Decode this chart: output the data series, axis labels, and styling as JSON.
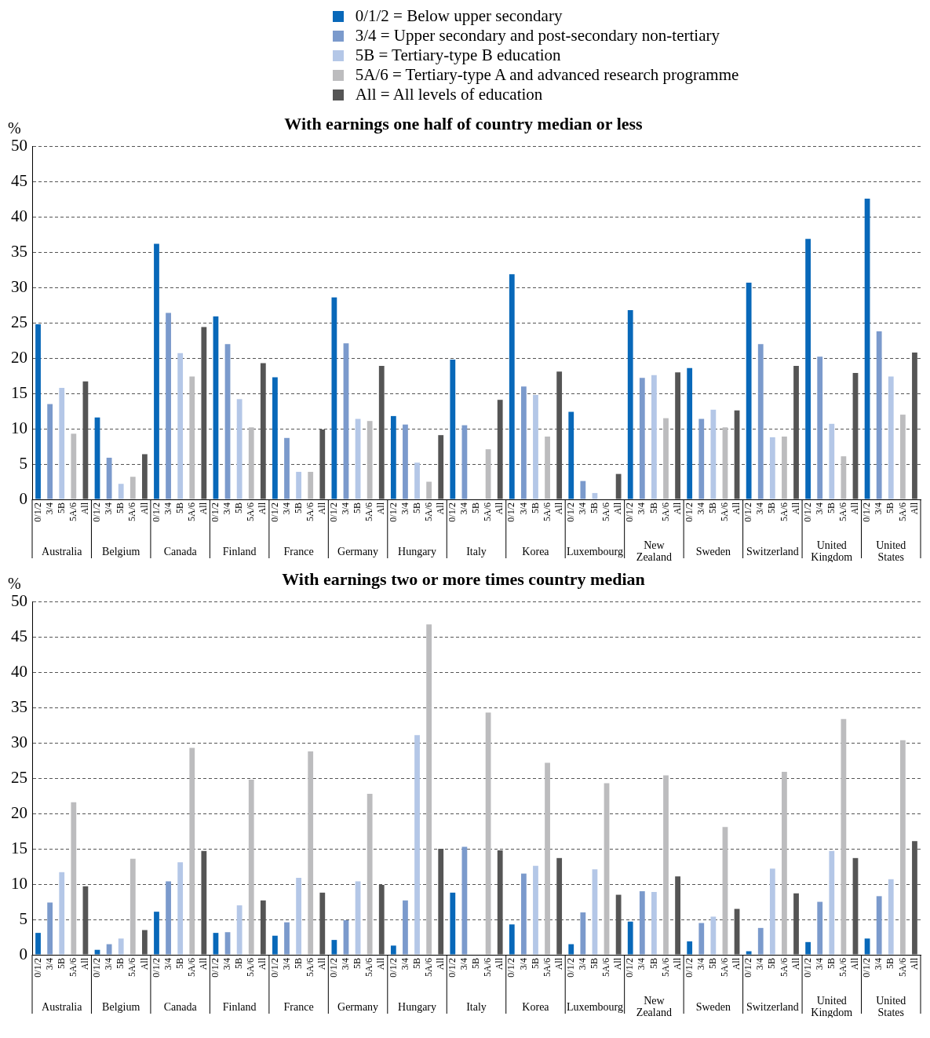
{
  "chart_data": [
    {
      "type": "bar",
      "title": "With earnings one half of country median or less",
      "ylabel": "%",
      "legend": "top",
      "grid": "y",
      "ylim": [
        0,
        50
      ],
      "yticks": [
        0,
        5,
        10,
        15,
        20,
        25,
        30,
        35,
        40,
        45,
        50
      ],
      "categories": [
        "0/1/2",
        "3/4",
        "5B",
        "5A/6",
        "All",
        "0/1/2",
        "3/4",
        "5B",
        "5A/6",
        "All",
        "0/1/2",
        "3/4",
        "5B",
        "5A/6",
        "All",
        "0/1/2",
        "3/4",
        "5B",
        "5A/6",
        "All",
        "0/1/2",
        "3/4",
        "5B",
        "5A/6",
        "All",
        "0/1/2",
        "3/4",
        "5B",
        "5A/6",
        "All",
        "0/1/2",
        "3/4",
        "5B",
        "5A/6",
        "All",
        "0/1/2",
        "3/4",
        "5B",
        "5A/6",
        "All",
        "0/1/2",
        "3/4",
        "5B",
        "5A/6",
        "All",
        "0/1/2",
        "3/4",
        "5B",
        "5A/6",
        "All",
        "0/1/2",
        "3/4",
        "5B",
        "5A/6",
        "All",
        "0/1/2",
        "3/4",
        "5B",
        "5A/6",
        "All",
        "0/1/2",
        "3/4",
        "5B",
        "5A/6",
        "All",
        "0/1/2",
        "3/4",
        "5B",
        "5A/6",
        "All",
        "0/1/2",
        "3/4",
        "5B",
        "5A/6",
        "All"
      ],
      "annotations": [
        "Australia",
        "Belgium",
        "Canada",
        "Finland",
        "France",
        "Germany",
        "Hungary",
        "Italy",
        "Korea",
        "Luxembourg",
        "New Zealand",
        "Sweden",
        "Switzerland",
        "United Kingdom",
        "United States"
      ],
      "series": [
        {
          "name": "0/1/2 = Below upper secondary",
          "color": "#0868b9",
          "values": [
            24.8,
            null,
            null,
            null,
            null,
            11.6,
            null,
            null,
            null,
            null,
            36.2,
            null,
            null,
            null,
            null,
            25.9,
            null,
            null,
            null,
            null,
            17.3,
            null,
            null,
            null,
            null,
            28.6,
            null,
            null,
            null,
            null,
            11.8,
            null,
            null,
            null,
            null,
            19.8,
            null,
            null,
            null,
            null,
            31.9,
            null,
            null,
            null,
            null,
            12.4,
            null,
            null,
            null,
            null,
            26.8,
            null,
            null,
            null,
            null,
            18.6,
            null,
            null,
            null,
            null,
            30.7,
            null,
            null,
            null,
            null,
            36.9,
            null,
            null,
            null,
            null,
            42.6,
            null,
            null,
            null,
            null
          ]
        },
        {
          "name": "3/4 = Upper secondary and post-secondary non-tertiary",
          "color": "#7b9acc",
          "values": [
            null,
            13.5,
            null,
            null,
            null,
            null,
            5.9,
            null,
            null,
            null,
            null,
            26.4,
            null,
            null,
            null,
            null,
            22,
            null,
            null,
            null,
            null,
            8.7,
            null,
            null,
            null,
            null,
            22.1,
            null,
            null,
            null,
            null,
            10.6,
            null,
            null,
            null,
            null,
            10.5,
            null,
            null,
            null,
            null,
            16,
            null,
            null,
            null,
            null,
            2.6,
            null,
            null,
            null,
            null,
            17.2,
            null,
            null,
            null,
            null,
            11.4,
            null,
            null,
            null,
            null,
            22,
            null,
            null,
            null,
            null,
            20.2,
            null,
            null,
            null,
            null,
            23.8,
            null,
            null,
            null
          ]
        },
        {
          "name": "5B = Tertiary-type B education",
          "color": "#b4c7e7",
          "values": [
            null,
            null,
            15.8,
            null,
            null,
            null,
            null,
            2.2,
            null,
            null,
            null,
            null,
            20.7,
            null,
            null,
            null,
            null,
            14.2,
            null,
            null,
            null,
            null,
            3.9,
            null,
            null,
            null,
            null,
            11.4,
            null,
            null,
            null,
            null,
            5.2,
            null,
            null,
            null,
            null,
            null,
            null,
            null,
            null,
            null,
            14.8,
            null,
            null,
            null,
            null,
            0.9,
            null,
            null,
            null,
            null,
            17.6,
            null,
            null,
            null,
            null,
            12.7,
            null,
            null,
            null,
            null,
            8.8,
            null,
            null,
            null,
            null,
            10.7,
            null,
            null,
            null,
            null,
            17.4,
            null,
            null
          ]
        },
        {
          "name": "5A/6 = Tertiary-type A and advanced research programme",
          "color": "#bcbcbe",
          "values": [
            null,
            null,
            null,
            9.3,
            null,
            null,
            null,
            null,
            3.2,
            null,
            null,
            null,
            null,
            17.4,
            null,
            null,
            null,
            null,
            10.2,
            null,
            null,
            null,
            null,
            3.9,
            null,
            null,
            null,
            null,
            11.1,
            null,
            null,
            null,
            null,
            2.5,
            null,
            null,
            null,
            null,
            7.1,
            null,
            null,
            null,
            null,
            8.9,
            null,
            null,
            null,
            null,
            null,
            null,
            null,
            null,
            null,
            11.5,
            null,
            null,
            null,
            null,
            10.2,
            null,
            null,
            null,
            null,
            8.9,
            null,
            null,
            null,
            null,
            6.1,
            null,
            null,
            null,
            null,
            12,
            null
          ]
        },
        {
          "name": "All = All levels of education",
          "color": "#555555",
          "values": [
            null,
            null,
            null,
            null,
            16.7,
            null,
            null,
            null,
            null,
            6.4,
            null,
            null,
            null,
            null,
            24.4,
            null,
            null,
            null,
            null,
            19.3,
            null,
            null,
            null,
            null,
            9.9,
            null,
            null,
            null,
            null,
            18.9,
            null,
            null,
            null,
            null,
            9.1,
            null,
            null,
            null,
            null,
            14.1,
            null,
            null,
            null,
            null,
            18.1,
            null,
            null,
            null,
            null,
            3.6,
            null,
            null,
            null,
            null,
            18,
            null,
            null,
            null,
            null,
            12.6,
            null,
            null,
            null,
            null,
            18.9,
            null,
            null,
            null,
            null,
            17.9,
            null,
            null,
            null,
            null,
            20.8
          ]
        }
      ]
    },
    {
      "type": "bar",
      "title": "With earnings two or more times country median",
      "ylabel": "%",
      "grid": "y",
      "ylim": [
        0,
        50
      ],
      "yticks": [
        0,
        5,
        10,
        15,
        20,
        25,
        30,
        35,
        40,
        45,
        50
      ],
      "categories": [
        "0/1/2",
        "3/4",
        "5B",
        "5A/6",
        "All",
        "0/1/2",
        "3/4",
        "5B",
        "5A/6",
        "All",
        "0/1/2",
        "3/4",
        "5B",
        "5A/6",
        "All",
        "0/1/2",
        "3/4",
        "5B",
        "5A/6",
        "All",
        "0/1/2",
        "3/4",
        "5B",
        "5A/6",
        "All",
        "0/1/2",
        "3/4",
        "5B",
        "5A/6",
        "All",
        "0/1/2",
        "3/4",
        "5B",
        "5A/6",
        "All",
        "0/1/2",
        "3/4",
        "5B",
        "5A/6",
        "All",
        "0/1/2",
        "3/4",
        "5B",
        "5A/6",
        "All",
        "0/1/2",
        "3/4",
        "5B",
        "5A/6",
        "All",
        "0/1/2",
        "3/4",
        "5B",
        "5A/6",
        "All",
        "0/1/2",
        "3/4",
        "5B",
        "5A/6",
        "All",
        "0/1/2",
        "3/4",
        "5B",
        "5A/6",
        "All",
        "0/1/2",
        "3/4",
        "5B",
        "5A/6",
        "All",
        "0/1/2",
        "3/4",
        "5B",
        "5A/6",
        "All"
      ],
      "annotations": [
        "Australia",
        "Belgium",
        "Canada",
        "Finland",
        "France",
        "Germany",
        "Hungary",
        "Italy",
        "Korea",
        "Luxembourg",
        "New Zealand",
        "Sweden",
        "Switzerland",
        "United Kingdom",
        "United States"
      ],
      "series": [
        {
          "color": "#0868b9",
          "values": [
            3.1,
            null,
            null,
            null,
            null,
            0.7,
            null,
            null,
            null,
            null,
            6.1,
            null,
            null,
            null,
            null,
            3.1,
            null,
            null,
            null,
            null,
            2.7,
            null,
            null,
            null,
            null,
            2.1,
            null,
            null,
            null,
            null,
            1.3,
            null,
            null,
            null,
            null,
            8.8,
            null,
            null,
            null,
            null,
            4.3,
            null,
            null,
            null,
            null,
            1.5,
            null,
            null,
            null,
            null,
            4.7,
            null,
            null,
            null,
            null,
            1.9,
            null,
            null,
            null,
            null,
            0.5,
            null,
            null,
            null,
            null,
            1.8,
            null,
            null,
            null,
            null,
            2.3,
            null,
            null,
            null,
            null
          ]
        },
        {
          "color": "#7b9acc",
          "values": [
            null,
            7.4,
            null,
            null,
            null,
            null,
            1.5,
            null,
            null,
            null,
            null,
            10.4,
            null,
            null,
            null,
            null,
            3.2,
            null,
            null,
            null,
            null,
            4.6,
            null,
            null,
            null,
            null,
            4.9,
            null,
            null,
            null,
            null,
            7.7,
            null,
            null,
            null,
            null,
            15.3,
            null,
            null,
            null,
            null,
            11.5,
            null,
            null,
            null,
            null,
            6,
            null,
            null,
            null,
            null,
            9,
            null,
            null,
            null,
            null,
            4.5,
            null,
            null,
            null,
            null,
            3.8,
            null,
            null,
            null,
            null,
            7.5,
            null,
            null,
            null,
            null,
            8.3,
            null,
            null,
            null
          ]
        },
        {
          "color": "#b4c7e7",
          "values": [
            null,
            null,
            11.7,
            null,
            null,
            null,
            null,
            2.3,
            null,
            null,
            null,
            null,
            13.1,
            null,
            null,
            null,
            null,
            7,
            null,
            null,
            null,
            null,
            10.9,
            null,
            null,
            null,
            null,
            10.4,
            null,
            null,
            null,
            null,
            31.1,
            null,
            null,
            null,
            null,
            null,
            null,
            null,
            null,
            null,
            12.6,
            null,
            null,
            null,
            null,
            12.1,
            null,
            null,
            null,
            null,
            8.9,
            null,
            null,
            null,
            null,
            5.4,
            null,
            null,
            null,
            null,
            12.2,
            null,
            null,
            null,
            null,
            14.7,
            null,
            null,
            null,
            null,
            10.7,
            null,
            null
          ]
        },
        {
          "color": "#bcbcbe",
          "values": [
            null,
            null,
            null,
            21.6,
            null,
            null,
            null,
            null,
            13.6,
            null,
            null,
            null,
            null,
            29.3,
            null,
            null,
            null,
            null,
            24.8,
            null,
            null,
            null,
            null,
            28.8,
            null,
            null,
            null,
            null,
            22.8,
            null,
            null,
            null,
            null,
            46.8,
            null,
            null,
            null,
            null,
            34.3,
            null,
            null,
            null,
            null,
            27.2,
            null,
            null,
            null,
            null,
            24.3,
            null,
            null,
            null,
            null,
            25.4,
            null,
            null,
            null,
            null,
            18.1,
            null,
            null,
            null,
            null,
            25.9,
            null,
            null,
            null,
            null,
            33.4,
            null,
            null,
            null,
            null,
            30.4,
            null
          ]
        },
        {
          "color": "#555555",
          "values": [
            null,
            null,
            null,
            null,
            9.7,
            null,
            null,
            null,
            null,
            3.5,
            null,
            null,
            null,
            null,
            14.7,
            null,
            null,
            null,
            null,
            7.7,
            null,
            null,
            null,
            null,
            8.8,
            null,
            null,
            null,
            null,
            9.9,
            null,
            null,
            null,
            null,
            15,
            null,
            null,
            null,
            null,
            14.8,
            null,
            null,
            null,
            null,
            13.7,
            null,
            null,
            null,
            null,
            8.5,
            null,
            null,
            null,
            null,
            11.1,
            null,
            null,
            null,
            null,
            6.5,
            null,
            null,
            null,
            null,
            8.7,
            null,
            null,
            null,
            null,
            13.7,
            null,
            null,
            null,
            null,
            16.1
          ]
        }
      ]
    }
  ]
}
